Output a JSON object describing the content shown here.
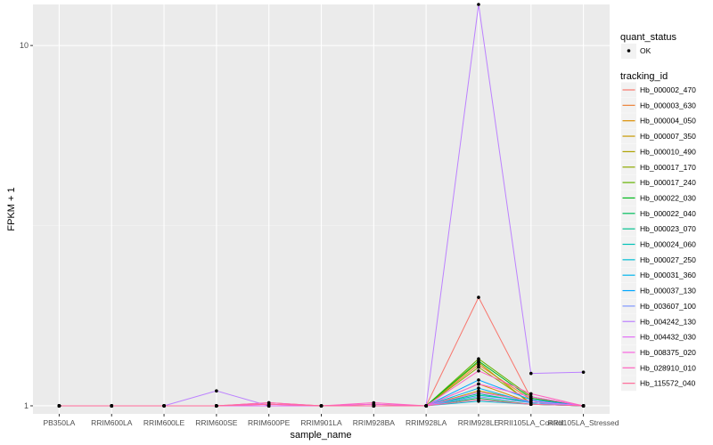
{
  "chart_data": {
    "type": "line",
    "title": "",
    "xlabel": "sample_name",
    "ylabel": "FPKM + 1",
    "y_scale": "log10",
    "ylim": [
      0.95,
      13
    ],
    "y_ticks": [
      1,
      10
    ],
    "y_tick_labels": [
      "1",
      "10"
    ],
    "grid": true,
    "legend_position": "right",
    "categories": [
      "PB350LA",
      "RRIM600LA",
      "RRIM600LE",
      "RRIM600SE",
      "RRIM600PE",
      "RRIM901LA",
      "RRIM928BA",
      "RRIM928LA",
      "RRIM928LE",
      "RRII105LA_Control",
      "RRII105LA_Stressed"
    ],
    "marker_legend": {
      "title": "quant_status",
      "entries": [
        {
          "label": "OK",
          "color": "#000000"
        }
      ]
    },
    "series_legend_title": "tracking_id",
    "series": [
      {
        "name": "Hb_000002_470",
        "color": "#F8766D",
        "values": [
          1,
          1,
          1,
          1,
          1,
          1,
          1,
          1,
          2.0,
          1.05,
          1
        ]
      },
      {
        "name": "Hb_000003_630",
        "color": "#EC8239",
        "values": [
          1,
          1,
          1,
          1,
          1.02,
          1,
          1,
          1,
          1.3,
          1.04,
          1
        ]
      },
      {
        "name": "Hb_000004_050",
        "color": "#DB8E00",
        "values": [
          1,
          1,
          1,
          1,
          1,
          1,
          1,
          1,
          1.15,
          1.02,
          1
        ]
      },
      {
        "name": "Hb_000007_350",
        "color": "#C79800",
        "values": [
          1,
          1,
          1,
          1,
          1,
          1,
          1.01,
          1,
          1.1,
          1.03,
          1
        ]
      },
      {
        "name": "Hb_000010_490",
        "color": "#AEA200",
        "values": [
          1,
          1,
          1,
          1,
          1,
          1,
          1,
          1,
          1.32,
          1.01,
          1
        ]
      },
      {
        "name": "Hb_000017_170",
        "color": "#8FAA00",
        "values": [
          1,
          1,
          1,
          1,
          1,
          1,
          1,
          1,
          1.28,
          1.02,
          1
        ]
      },
      {
        "name": "Hb_000017_240",
        "color": "#64B200",
        "values": [
          1,
          1,
          1,
          1,
          1,
          1,
          1,
          1,
          1.35,
          1.06,
          1
        ]
      },
      {
        "name": "Hb_000022_030",
        "color": "#00B81B",
        "values": [
          1,
          1,
          1,
          1,
          1,
          1,
          1,
          1,
          1.33,
          1.05,
          1
        ]
      },
      {
        "name": "Hb_000022_040",
        "color": "#00BD5C",
        "values": [
          1,
          1,
          1,
          1,
          1,
          1,
          1,
          1,
          1.05,
          1.01,
          1
        ]
      },
      {
        "name": "Hb_000023_070",
        "color": "#00C08E",
        "values": [
          1,
          1,
          1,
          1,
          1,
          1,
          1,
          1,
          1.08,
          1.02,
          1
        ]
      },
      {
        "name": "Hb_000024_060",
        "color": "#00C1B7",
        "values": [
          1,
          1,
          1,
          1,
          1,
          1,
          1,
          1,
          1.07,
          1.03,
          1
        ]
      },
      {
        "name": "Hb_000027_250",
        "color": "#00BDD4",
        "values": [
          1,
          1,
          1,
          1,
          1,
          1,
          1,
          1,
          1.03,
          1.01,
          1
        ]
      },
      {
        "name": "Hb_000031_360",
        "color": "#00B5EE",
        "values": [
          1,
          1,
          1,
          1,
          1,
          1,
          1,
          1,
          1.12,
          1.02,
          1
        ]
      },
      {
        "name": "Hb_000037_130",
        "color": "#00A7FF",
        "values": [
          1,
          1,
          1,
          1,
          1,
          1,
          1,
          1,
          1.18,
          1.04,
          1
        ]
      },
      {
        "name": "Hb_003607_100",
        "color": "#7F96FF",
        "values": [
          1,
          1,
          1,
          1,
          1,
          1,
          1,
          1,
          1.06,
          1.02,
          1
        ]
      },
      {
        "name": "Hb_004242_130",
        "color": "#BC81FF",
        "values": [
          1,
          1,
          1,
          1.1,
          1,
          1,
          1,
          1,
          13,
          1.23,
          1.24
        ]
      },
      {
        "name": "Hb_004432_030",
        "color": "#E26EF7",
        "values": [
          1,
          1,
          1,
          1,
          1,
          1,
          1,
          1,
          1.09,
          1.03,
          1
        ]
      },
      {
        "name": "Hb_008375_020",
        "color": "#F863DF",
        "values": [
          1,
          1,
          1,
          1,
          1.01,
          1,
          1.01,
          1,
          1.15,
          1.06,
          1
        ]
      },
      {
        "name": "Hb_028910_010",
        "color": "#FF62BF",
        "values": [
          1,
          1,
          1,
          1,
          1.02,
          1,
          1.02,
          1,
          1.25,
          1.08,
          1
        ]
      },
      {
        "name": "Hb_115572_040",
        "color": "#FF6A98",
        "values": [
          1,
          1,
          1,
          1,
          1.01,
          1,
          1,
          1,
          1.04,
          1.01,
          1
        ]
      }
    ]
  },
  "colors": {
    "panel_background": "#EBEBEB",
    "grid_major": "#FFFFFF",
    "point": "#000000"
  }
}
